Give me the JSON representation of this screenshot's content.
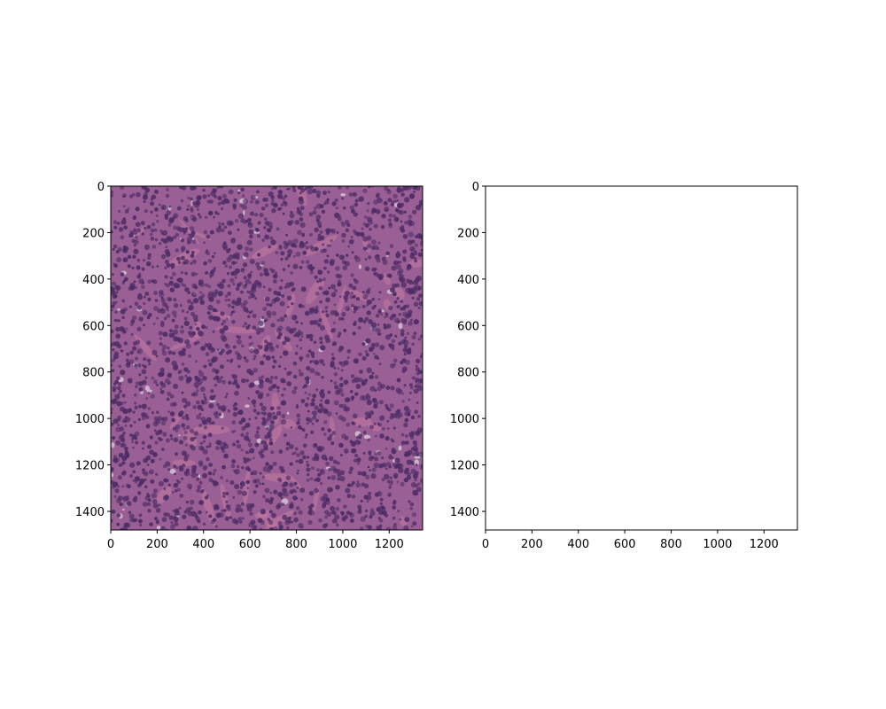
{
  "figure": {
    "background": "#ffffff",
    "panels": [
      {
        "id": "left",
        "content": "H&E stained histology image (dense purple cell nuclei on pink stroma)",
        "xticks": [
          "0",
          "200",
          "400",
          "600",
          "800",
          "1000",
          "1200"
        ],
        "yticks": [
          "0",
          "200",
          "400",
          "600",
          "800",
          "1000",
          "1200",
          "1400"
        ],
        "xlim": [
          0,
          1344
        ],
        "ylim": [
          1480,
          0
        ],
        "tissue_colors": {
          "base": "#9a5f95",
          "stroma": "#c47aa0",
          "nucleus": "#4e2d66",
          "gap": "#d8d0dc"
        }
      },
      {
        "id": "right",
        "content": "empty",
        "xticks": [
          "0",
          "200",
          "400",
          "600",
          "800",
          "1000",
          "1200"
        ],
        "yticks": [
          "0",
          "200",
          "400",
          "600",
          "800",
          "1000",
          "1200",
          "1400"
        ],
        "xlim": [
          0,
          1344
        ],
        "ylim": [
          1480,
          0
        ]
      }
    ]
  }
}
